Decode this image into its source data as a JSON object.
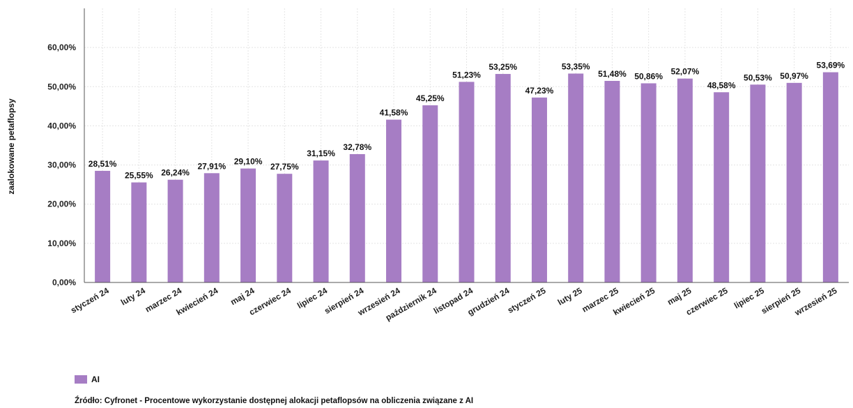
{
  "chart_data": {
    "type": "bar",
    "categories": [
      "styczeń 24",
      "luty 24",
      "marzec 24",
      "kwiecień 24",
      "maj 24",
      "czerwiec 24",
      "lipiec 24",
      "sierpień 24",
      "wrzesień 24",
      "październik 24",
      "listopad 24",
      "grudzień 24",
      "styczeń 25",
      "luty 25",
      "marzec 25",
      "kwiecień 25",
      "maj 25",
      "czerwiec 25",
      "lipiec 25",
      "sierpień 25",
      "wrzesień 25"
    ],
    "series": [
      {
        "name": "AI",
        "values": [
          28.51,
          25.55,
          26.24,
          27.91,
          29.1,
          27.75,
          31.15,
          32.78,
          41.58,
          45.25,
          51.23,
          53.25,
          47.23,
          53.35,
          51.48,
          50.86,
          52.07,
          48.58,
          50.53,
          50.97,
          53.69
        ],
        "labels": [
          "28,51%",
          "25,55%",
          "26,24%",
          "27,91%",
          "29,10%",
          "27,75%",
          "31,15%",
          "32,78%",
          "41,58%",
          "45,25%",
          "51,23%",
          "53,25%",
          "47,23%",
          "53,35%",
          "51,48%",
          "50,86%",
          "52,07%",
          "48,58%",
          "50,53%",
          "50,97%",
          "53,69%"
        ]
      }
    ],
    "xlabel": "",
    "ylabel": "zaalokowane petaflopsy",
    "ylim": [
      0,
      70
    ],
    "yticks": [
      0,
      10,
      20,
      30,
      40,
      50,
      60
    ],
    "ytick_labels": [
      "0,00%",
      "10,00%",
      "20,00%",
      "30,00%",
      "40,00%",
      "50,00%",
      "60,00%"
    ],
    "grid": true,
    "legend_position": "bottom-left",
    "colors": {
      "bar": "#a67dc4",
      "grid": "#e4e4e4",
      "axis": "#555555"
    }
  },
  "footer": {
    "source": "Źródło: Cyfronet -  Procentowe wykorzystanie dostępnej alokacji petaflopsów na obliczenia związane z AI"
  }
}
